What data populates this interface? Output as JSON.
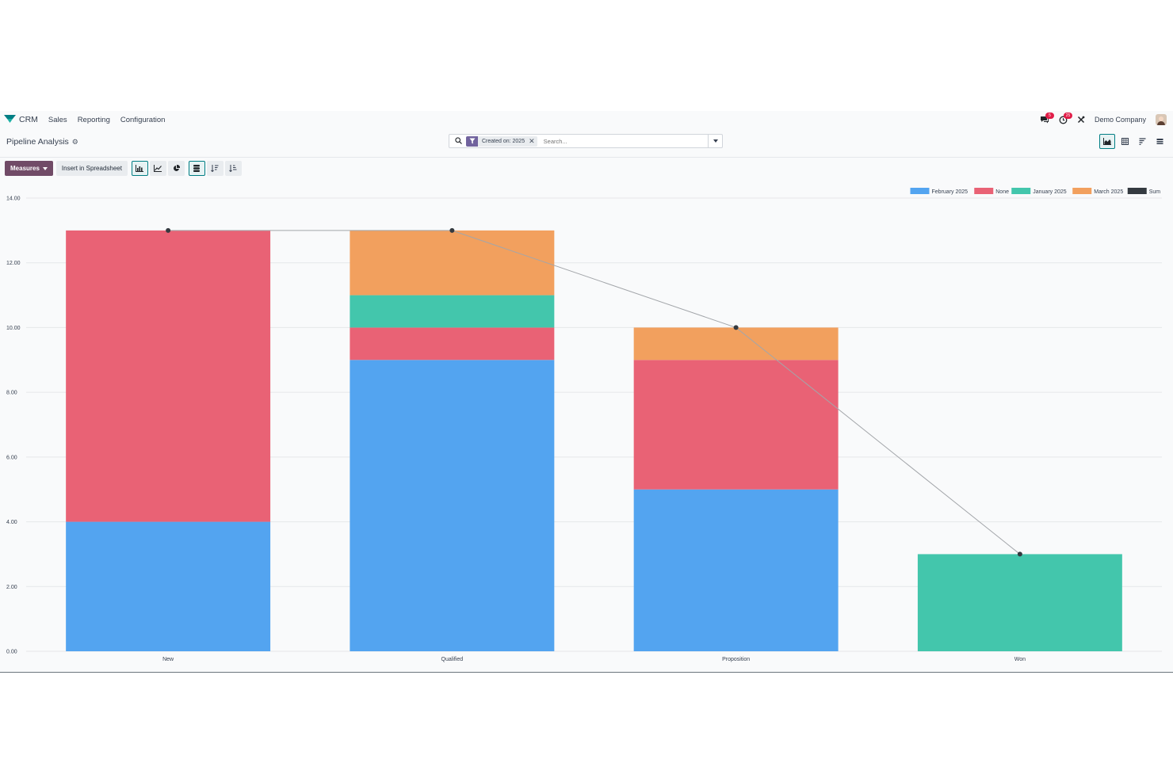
{
  "navbar": {
    "app_name": "CRM",
    "menus": [
      "Sales",
      "Reporting",
      "Configuration"
    ],
    "messages_count": "5",
    "activities_count": "25",
    "company": "Demo Company"
  },
  "control_panel": {
    "title": "Pipeline Analysis",
    "search": {
      "facet": "Created on: 2025",
      "placeholder": "Search..."
    },
    "views": [
      "graph",
      "pivot",
      "cohort",
      "list"
    ],
    "active_view": "graph"
  },
  "toolbar": {
    "measures_label": "Measures",
    "spreadsheet_label": "Insert in Spreadsheet"
  },
  "colors": {
    "brand": "#714b67",
    "accent": "#017e84"
  },
  "chart_data": {
    "type": "bar",
    "stacked": true,
    "categories": [
      "New",
      "Qualified",
      "Proposition",
      "Won"
    ],
    "series": [
      {
        "name": "February 2025",
        "color": "#53a4f0",
        "values": [
          4,
          9,
          5,
          0
        ]
      },
      {
        "name": "None",
        "color": "#e96275",
        "values": [
          9,
          1,
          4,
          0
        ]
      },
      {
        "name": "January 2025",
        "color": "#43c6ac",
        "values": [
          0,
          1,
          0,
          3
        ]
      },
      {
        "name": "March 2025",
        "color": "#f2a05e",
        "values": [
          0,
          2,
          1,
          0
        ]
      }
    ],
    "line_series": {
      "name": "Sum",
      "color": "#343a40",
      "values": [
        13,
        13,
        10,
        3
      ]
    },
    "ylim": [
      0,
      14
    ],
    "yticks": [
      "0.00",
      "2.00",
      "4.00",
      "6.00",
      "8.00",
      "10.00",
      "12.00",
      "14.00"
    ],
    "grid": true,
    "legend_position": "top-right"
  }
}
